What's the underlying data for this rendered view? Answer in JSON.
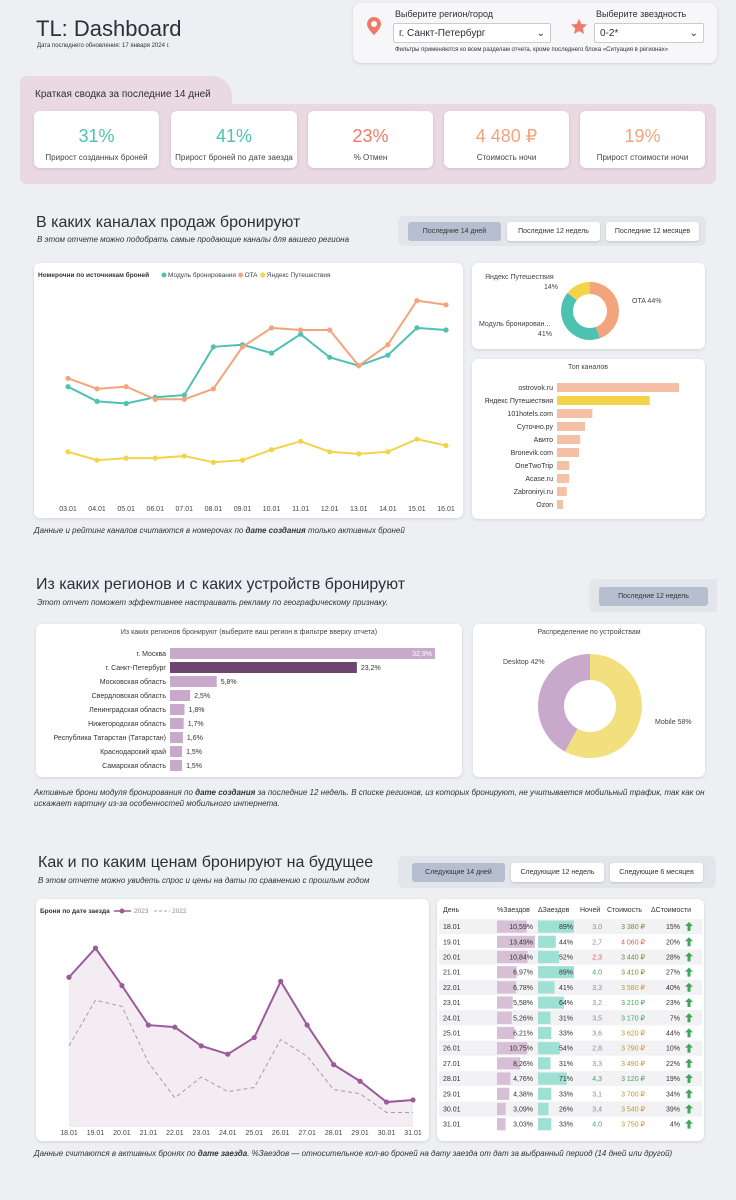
{
  "header": {
    "title": "TL: Dashboard",
    "updated": "Дата последнего обновления: 17 января 2024 г."
  },
  "filters": {
    "region_label": "Выберите регион/город",
    "region_value": "г. Санкт-Петербург",
    "stars_label": "Выберите звездность",
    "stars_value": "0-2*",
    "note": "Фильтры применяются ко всем разделам отчета, кроме последнего блока «Ситуация в регионах»"
  },
  "summary": {
    "title": "Краткая сводка за последние 14 дней",
    "kpis": [
      {
        "value": "31%",
        "label": "Прирост созданных броней",
        "color": "#4ec2b2"
      },
      {
        "value": "41%",
        "label": "Прирост броней по дате заезда",
        "color": "#4ec2b2"
      },
      {
        "value": "23%",
        "label": "% Отмен",
        "color": "#ef7a6b"
      },
      {
        "value": "4 480 ₽",
        "label": "Стоимость ночи",
        "color": "#f2a47c"
      },
      {
        "value": "19%",
        "label": "Прирост стоимости ночи",
        "color": "#f2a47c"
      }
    ]
  },
  "channels": {
    "title": "В каких каналах продаж бронируют",
    "subtitle": "В этом отчете можно подобрать самые продающие каналы для вашего региона",
    "buttons": [
      "Последние 14 дней",
      "Последние 12 недель",
      "Последние 12 месяцев"
    ],
    "note_pre": "Данные и рейтинг каналов считаются в номерочах по ",
    "note_bold": "дате создания",
    "note_post": " только активных броней"
  },
  "regions": {
    "title": "Из каких регионов и с каких устройств бронируют",
    "subtitle": "Этот отчет поможет эффективнее настраивать рекламу по географическому признаку.",
    "button": "Последние 12 недель",
    "note_pre": "Активные брони модуля бронирования по ",
    "note_bold": "дате создания",
    "note_post": " за последние 12 недель. В списке регионов, из которых бронируют, не учитывается мобильный трафик, так как он искажает картину из-за особенностей мобильного интернета."
  },
  "future": {
    "title": "Как и по каким ценам бронируют на будущее",
    "subtitle": "В этом отчете можно увидеть спрос и цены на даты по сравнению с прошлым годом",
    "buttons": [
      "Следующие 14 дней",
      "Следующие 12 недель",
      "Следующие 6 месяцев"
    ],
    "note_pre": "Данные считаются в активных бронях по ",
    "note_bold": "дате заезда",
    ". ": "",
    "note_b2": "%Заездов",
    "note_post": " — относительное кол-во броней на дату заезда от дат за выбранный период (14 дней или другой)"
  },
  "table": {
    "headers": [
      "День",
      "%Заездов",
      "ΔЗаездов",
      "Ночей",
      "Стоимость",
      "ΔСтоимости"
    ],
    "rows": [
      [
        "18.01",
        "10,59%",
        "89%",
        "3,0",
        "3 380 ₽",
        "15%"
      ],
      [
        "19.01",
        "13,49%",
        "44%",
        "2,7",
        "4 060 ₽",
        "20%"
      ],
      [
        "20.01",
        "10,84%",
        "52%",
        "2,3",
        "3 440 ₽",
        "28%"
      ],
      [
        "21.01",
        "6,97%",
        "89%",
        "4,0",
        "3 410 ₽",
        "27%"
      ],
      [
        "22.01",
        "6,78%",
        "41%",
        "3,3",
        "3 580 ₽",
        "40%"
      ],
      [
        "23.01",
        "5,58%",
        "64%",
        "3,2",
        "3 210 ₽",
        "23%"
      ],
      [
        "24.01",
        "5,26%",
        "31%",
        "3,5",
        "3 170 ₽",
        "7%"
      ],
      [
        "25.01",
        "6,21%",
        "33%",
        "3,6",
        "3 620 ₽",
        "44%"
      ],
      [
        "26.01",
        "10,75%",
        "54%",
        "2,8",
        "3 790 ₽",
        "10%"
      ],
      [
        "27.01",
        "8,26%",
        "31%",
        "3,3",
        "3 490 ₽",
        "22%"
      ],
      [
        "28.01",
        "4,76%",
        "71%",
        "4,3",
        "3 120 ₽",
        "19%"
      ],
      [
        "29.01",
        "4,38%",
        "33%",
        "3,1",
        "3 700 ₽",
        "34%"
      ],
      [
        "30.01",
        "3,09%",
        "26%",
        "3,4",
        "3 540 ₽",
        "39%"
      ],
      [
        "31.01",
        "3,03%",
        "33%",
        "4,0",
        "3 750 ₽",
        "4%"
      ]
    ],
    "pct_values": [
      10.59,
      13.49,
      10.84,
      6.97,
      6.78,
      5.58,
      5.26,
      6.21,
      10.75,
      8.26,
      4.76,
      4.38,
      3.09,
      3.03
    ],
    "delta_values": [
      89,
      44,
      52,
      89,
      41,
      64,
      31,
      33,
      54,
      31,
      71,
      33,
      26,
      33
    ],
    "nights_colors": [
      "#8a8a8a",
      "#8a8a8a",
      "#e05a4a",
      "#3fa65a",
      "#8a8a8a",
      "#8a8a8a",
      "#8a8a8a",
      "#8a8a8a",
      "#8a8a8a",
      "#8a8a8a",
      "#3fa65a",
      "#8a8a8a",
      "#8a8a8a",
      "#3fa65a"
    ],
    "price_colors": [
      "#6b8f2a",
      "#e05a4a",
      "#6b8f2a",
      "#6b8f2a",
      "#c9931f",
      "#3fa65a",
      "#3fa65a",
      "#c9931f",
      "#c9931f",
      "#c9931f",
      "#3fa65a",
      "#c9931f",
      "#c9931f",
      "#c9931f"
    ],
    "arrow_icon": "up-arrow-icon"
  },
  "chart_data": [
    {
      "type": "line",
      "id": "channels_line",
      "title": "Номерочни по источникам броней",
      "x": [
        "03.01",
        "04.01",
        "05.01",
        "06.01",
        "07.01",
        "08.01",
        "09.01",
        "10.01",
        "11.01",
        "12.01",
        "13.01",
        "14.01",
        "15.01",
        "16.01"
      ],
      "ylim": [
        0,
        100
      ],
      "series": [
        {
          "name": "Модуль бронирования",
          "color": "#4ec2b2",
          "values": [
            53,
            46,
            45,
            48,
            49,
            72,
            73,
            69,
            78,
            67,
            63,
            68,
            81,
            80
          ]
        },
        {
          "name": "OTA",
          "color": "#f2a47c",
          "values": [
            57,
            52,
            53,
            47,
            47,
            52,
            72,
            81,
            80,
            80,
            63,
            73,
            94,
            92
          ]
        },
        {
          "name": "Яндекс Путешествия",
          "color": "#f2d34a",
          "values": [
            22,
            18,
            19,
            19,
            20,
            17,
            18,
            23,
            27,
            22,
            21,
            22,
            28,
            25
          ]
        }
      ]
    },
    {
      "type": "pie",
      "id": "channels_donut",
      "slices": [
        {
          "name": "OTA",
          "value": 44,
          "label": "OTA 44%",
          "color": "#f2a47c"
        },
        {
          "name": "Модуль бронирования",
          "value": 41,
          "label": "Модуль бронирован... 41%",
          "color": "#4ec2b2"
        },
        {
          "name": "Яндекс Путешествия",
          "value": 14,
          "label": "Яндекс Путешествия 14%",
          "color": "#f2d34a"
        }
      ]
    },
    {
      "type": "bar",
      "id": "top_channels",
      "title": "Топ каналов",
      "categories": [
        "ostrovok.ru",
        "Яндекс Путешествия",
        "101hotels.com",
        "Суточно.ру",
        "Авито",
        "Bronevik.com",
        "OneTwoTrip",
        "Acase.ru",
        "Zabroniryi.ru",
        "Ozon"
      ],
      "values": [
        100,
        76,
        29,
        23,
        19,
        18,
        10,
        10,
        8,
        5
      ],
      "colors": [
        "#f5c0a5",
        "#f2d34a",
        "#f5c0a5",
        "#f5c0a5",
        "#f5c0a5",
        "#f5c0a5",
        "#f5c0a5",
        "#f5c0a5",
        "#f5c0a5",
        "#f5c0a5"
      ]
    },
    {
      "type": "bar",
      "id": "regions_bar",
      "title": "Из каких регионов бронируют (выберите ваш регион в фильтре вверху отчета)",
      "categories": [
        "г. Москва",
        "г. Санкт-Петербург",
        "Московская область",
        "Свердловская область",
        "Ленинградская область",
        "Нижегородская область",
        "Республика Татарстан (Татарстан)",
        "Краснодарский край",
        "Самарская область"
      ],
      "values": [
        32.9,
        23.2,
        5.8,
        2.5,
        1.8,
        1.7,
        1.6,
        1.5,
        1.5
      ],
      "labels": [
        "32,9%",
        "23,2%",
        "5,8%",
        "2,5%",
        "1,8%",
        "1,7%",
        "1,6%",
        "1,5%",
        "1,5%"
      ],
      "colors": [
        "#c8a9cc",
        "#6e4470",
        "#c8a9cc",
        "#c8a9cc",
        "#c8a9cc",
        "#c8a9cc",
        "#c8a9cc",
        "#c8a9cc",
        "#c8a9cc"
      ]
    },
    {
      "type": "pie",
      "id": "devices_donut",
      "title": "Распределение по устройствам",
      "slices": [
        {
          "name": "Mobile",
          "value": 58,
          "label": "Mobile 58%",
          "color": "#f2df7e"
        },
        {
          "name": "Desktop",
          "value": 42,
          "label": "Desktop 42%",
          "color": "#c8a9cc"
        }
      ]
    },
    {
      "type": "line",
      "id": "arrivals_line",
      "title": "Брони по дате заезда",
      "x": [
        "18.01",
        "19.01",
        "20.01",
        "21.01",
        "22.01",
        "23.01",
        "24.01",
        "25.01",
        "26.01",
        "27.01",
        "28.01",
        "29.01",
        "30.01",
        "31.01"
      ],
      "ylim": [
        0,
        100
      ],
      "series": [
        {
          "name": "2023",
          "color": "#9b5a9b",
          "values": [
            72,
            86,
            68,
            49,
            48,
            39,
            35,
            43,
            70,
            49,
            30,
            22,
            12,
            13
          ]
        },
        {
          "name": "2022",
          "color": "#a0a0a0",
          "dashed": true,
          "values": [
            39,
            61,
            58,
            31,
            14,
            24,
            17,
            19,
            42,
            34,
            18,
            16,
            7,
            7
          ]
        }
      ]
    }
  ]
}
